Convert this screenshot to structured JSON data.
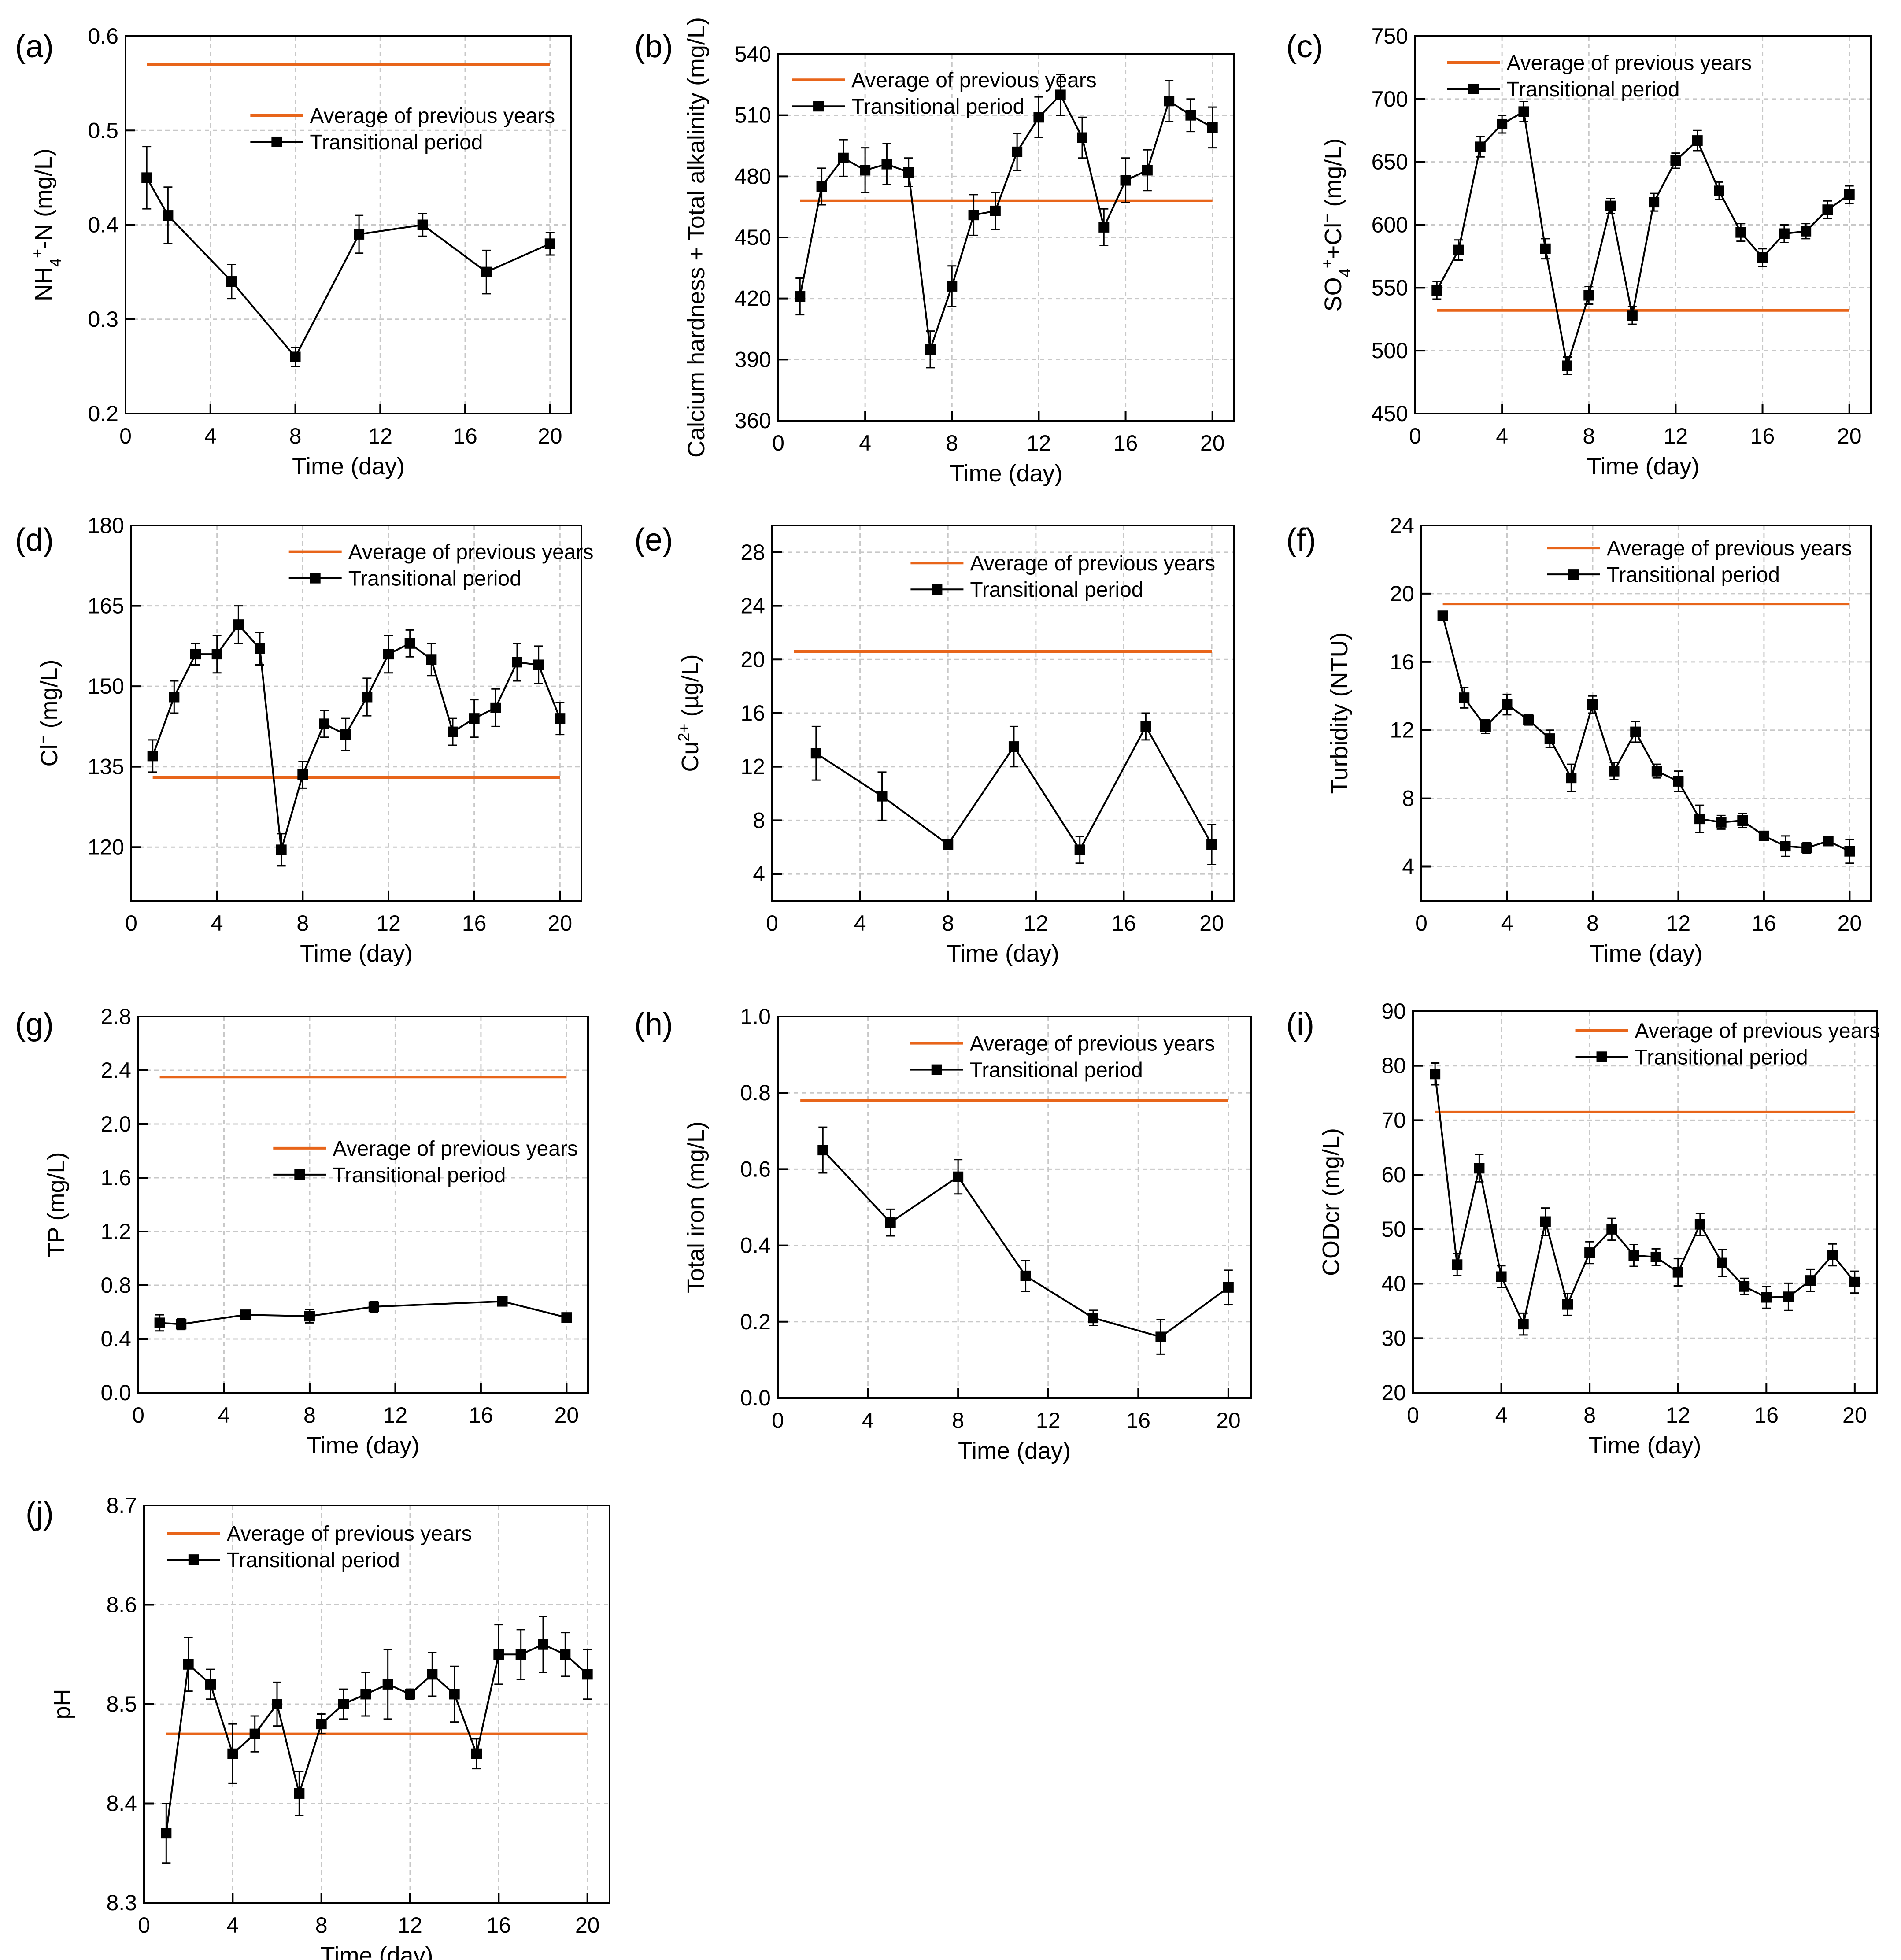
{
  "legend": {
    "average_label": "Average of previous years",
    "transitional_label": "Transitional period"
  },
  "colors": {
    "average": "#E8651A",
    "transitional": "#000000",
    "grid": "#c8c8c8"
  },
  "chart_data": [
    {
      "type": "line",
      "panel_label": "(a)",
      "xlabel": "Time (day)",
      "ylabel_parts": [
        [
          "NH",
          ""
        ],
        [
          "4",
          "sub"
        ],
        [
          "+",
          "sup"
        ],
        [
          "-N (mg/L)",
          ""
        ]
      ],
      "xlim": [
        0,
        21
      ],
      "xticks": [
        0,
        4,
        8,
        12,
        16,
        20
      ],
      "ylim": [
        0.2,
        0.6
      ],
      "yticks": [
        0.2,
        0.3,
        0.4,
        0.5,
        0.6
      ],
      "ydecimals": 1,
      "average": {
        "value": 0.57,
        "x_range": [
          1,
          20
        ]
      },
      "legend_position": "upper-right",
      "legend_anchor": [
        0.28,
        0.79
      ],
      "series": [
        {
          "name": "Transitional period",
          "x": [
            1,
            2,
            5,
            8,
            11,
            14,
            17,
            20
          ],
          "y": [
            0.45,
            0.41,
            0.34,
            0.26,
            0.39,
            0.4,
            0.35,
            0.38
          ],
          "err": [
            0.033,
            0.03,
            0.018,
            0.01,
            0.02,
            0.012,
            0.023,
            0.012
          ]
        }
      ]
    },
    {
      "type": "line",
      "panel_label": "(b)",
      "xlabel": "Time (day)",
      "ylabel_parts": [
        [
          "Calcium hardness + Total alkalinity (mg/L)",
          ""
        ]
      ],
      "xlim": [
        0,
        21
      ],
      "xticks": [
        0,
        4,
        8,
        12,
        16,
        20
      ],
      "ylim": [
        360,
        540
      ],
      "yticks": [
        360,
        390,
        420,
        450,
        480,
        510,
        540
      ],
      "ydecimals": 0,
      "average": {
        "value": 468,
        "x_range": [
          1,
          20
        ]
      },
      "legend_position": "top-left",
      "legend_anchor": [
        0.03,
        0.93
      ],
      "series": [
        {
          "name": "Transitional period",
          "x": [
            1,
            2,
            3,
            4,
            5,
            6,
            7,
            8,
            9,
            10,
            11,
            12,
            13,
            14,
            15,
            16,
            17,
            18,
            19,
            20
          ],
          "y": [
            421,
            475,
            489,
            483,
            486,
            482,
            395,
            426,
            461,
            463,
            492,
            509,
            520,
            499,
            455,
            478,
            483,
            517,
            510,
            504
          ],
          "err": [
            9,
            9,
            9,
            11,
            10,
            7,
            9,
            10,
            10,
            9,
            9,
            10,
            10,
            10,
            9,
            11,
            10,
            10,
            8,
            10
          ]
        }
      ]
    },
    {
      "type": "line",
      "panel_label": "(c)",
      "xlabel": "Time (day)",
      "ylabel_parts": [
        [
          "SO",
          ""
        ],
        [
          "4",
          "sub"
        ],
        [
          "+",
          "sup"
        ],
        [
          "+Cl",
          ""
        ],
        [
          "−",
          "sup"
        ],
        [
          " (mg/L)",
          ""
        ]
      ],
      "xlim": [
        0,
        21
      ],
      "xticks": [
        0,
        4,
        8,
        12,
        16,
        20
      ],
      "ylim": [
        450,
        750
      ],
      "yticks": [
        450,
        500,
        550,
        600,
        650,
        700,
        750
      ],
      "ydecimals": 0,
      "average": {
        "value": 532,
        "x_range": [
          1,
          20
        ]
      },
      "legend_position": "top-left",
      "legend_anchor": [
        0.07,
        0.93
      ],
      "series": [
        {
          "name": "Transitional period",
          "x": [
            1,
            2,
            3,
            4,
            5,
            6,
            7,
            8,
            9,
            10,
            11,
            12,
            13,
            14,
            15,
            16,
            17,
            18,
            19,
            20
          ],
          "y": [
            548,
            580,
            662,
            680,
            690,
            581,
            488,
            544,
            615,
            528,
            618,
            651,
            667,
            627,
            594,
            574,
            593,
            595,
            612,
            624
          ],
          "err": [
            7,
            8,
            8,
            7,
            8,
            8,
            7,
            7,
            6,
            7,
            7,
            6,
            8,
            7,
            7,
            7,
            7,
            6,
            7,
            7
          ]
        }
      ]
    },
    {
      "type": "line",
      "panel_label": "(d)",
      "xlabel": "Time (day)",
      "ylabel_parts": [
        [
          "Cl",
          ""
        ],
        [
          "−",
          "sup"
        ],
        [
          "  (mg/L)",
          ""
        ]
      ],
      "xlim": [
        0,
        21
      ],
      "xticks": [
        0,
        4,
        8,
        12,
        16,
        20
      ],
      "ylim": [
        110,
        180
      ],
      "yticks": [
        120,
        135,
        150,
        165,
        180
      ],
      "ydecimals": 0,
      "average": {
        "value": 133,
        "x_range": [
          1,
          20
        ]
      },
      "legend_position": "top-right",
      "legend_anchor": [
        0.35,
        0.93
      ],
      "series": [
        {
          "name": "Transitional period",
          "x": [
            1,
            2,
            3,
            4,
            5,
            6,
            7,
            8,
            9,
            10,
            11,
            12,
            13,
            14,
            15,
            16,
            17,
            18,
            19,
            20
          ],
          "y": [
            137,
            148,
            156,
            156,
            161.5,
            157,
            119.5,
            133.5,
            143,
            141,
            148,
            156,
            158,
            155,
            141.5,
            144,
            146,
            154.5,
            154,
            144
          ],
          "err": [
            3,
            3,
            2,
            3.5,
            3.5,
            3,
            3,
            2.5,
            2.5,
            3,
            3.5,
            3.5,
            2.5,
            3,
            2.5,
            3.5,
            3.5,
            3.5,
            3.5,
            3
          ]
        }
      ]
    },
    {
      "type": "line",
      "panel_label": "(e)",
      "xlabel": "Time (day)",
      "ylabel_parts": [
        [
          "Cu",
          ""
        ],
        [
          "2+",
          "sup"
        ],
        [
          " (µg/L)",
          ""
        ]
      ],
      "xlim": [
        0,
        21
      ],
      "xticks": [
        0,
        4,
        8,
        12,
        16,
        20
      ],
      "ylim": [
        2,
        30
      ],
      "yticks": [
        4,
        8,
        12,
        16,
        20,
        24,
        28
      ],
      "ydecimals": 0,
      "average": {
        "value": 20.6,
        "x_range": [
          1,
          20
        ]
      },
      "legend_position": "top-right",
      "legend_anchor": [
        0.3,
        0.9
      ],
      "series": [
        {
          "name": "Transitional period",
          "x": [
            2,
            5,
            8,
            11,
            14,
            17,
            20
          ],
          "y": [
            13,
            9.8,
            6.2,
            13.5,
            5.8,
            15,
            6.2
          ],
          "err": [
            2,
            1.8,
            0.2,
            1.5,
            1,
            1,
            1.5
          ]
        }
      ]
    },
    {
      "type": "line",
      "panel_label": "(f)",
      "xlabel": "Time (day)",
      "ylabel_parts": [
        [
          "Turbidity (NTU)",
          ""
        ]
      ],
      "xlim": [
        0,
        21
      ],
      "xticks": [
        0,
        4,
        8,
        12,
        16,
        20
      ],
      "ylim": [
        2,
        24
      ],
      "yticks": [
        4,
        8,
        12,
        16,
        20,
        24
      ],
      "ydecimals": 0,
      "average": {
        "value": 19.4,
        "x_range": [
          1,
          20
        ]
      },
      "legend_position": "top-right",
      "legend_anchor": [
        0.28,
        0.94
      ],
      "series": [
        {
          "name": "Transitional period",
          "x": [
            1,
            2,
            3,
            4,
            5,
            6,
            7,
            8,
            9,
            10,
            11,
            12,
            13,
            14,
            15,
            16,
            17,
            18,
            19,
            20
          ],
          "y": [
            18.7,
            13.9,
            12.2,
            13.5,
            12.6,
            11.5,
            9.2,
            13.5,
            9.6,
            11.9,
            9.6,
            9,
            6.8,
            6.6,
            6.7,
            5.8,
            5.2,
            5.1,
            5.5,
            4.9
          ],
          "err": [
            0.2,
            0.6,
            0.4,
            0.6,
            0.3,
            0.5,
            0.8,
            0.5,
            0.5,
            0.6,
            0.4,
            0.6,
            0.8,
            0.4,
            0.4,
            0.2,
            0.6,
            0.3,
            0.2,
            0.7
          ]
        }
      ]
    },
    {
      "type": "line",
      "panel_label": "(g)",
      "xlabel": "Time (day)",
      "ylabel_parts": [
        [
          "TP (mg/L)",
          ""
        ]
      ],
      "xlim": [
        0,
        21
      ],
      "xticks": [
        0,
        4,
        8,
        12,
        16,
        20
      ],
      "ylim": [
        0,
        2.8
      ],
      "yticks": [
        0,
        0.4,
        0.8,
        1.2,
        1.6,
        2.0,
        2.4,
        2.8
      ],
      "ydecimals": 1,
      "average": {
        "value": 2.35,
        "x_range": [
          1,
          20
        ]
      },
      "legend_position": "center-right",
      "legend_anchor": [
        0.3,
        0.65
      ],
      "series": [
        {
          "name": "Transitional period",
          "x": [
            1,
            2,
            5,
            8,
            11,
            17,
            20
          ],
          "y": [
            0.52,
            0.51,
            0.58,
            0.57,
            0.64,
            0.68,
            0.56
          ],
          "err": [
            0.06,
            0.04,
            0.02,
            0.05,
            0.04,
            0.02,
            0.02
          ]
        }
      ]
    },
    {
      "type": "line",
      "panel_label": "(h)",
      "xlabel": "Time (day)",
      "ylabel_parts": [
        [
          "Total iron (mg/L)",
          ""
        ]
      ],
      "xlim": [
        0,
        21
      ],
      "xticks": [
        0,
        4,
        8,
        12,
        16,
        20
      ],
      "ylim": [
        0,
        1.0
      ],
      "yticks": [
        0,
        0.2,
        0.4,
        0.6,
        0.8,
        1.0
      ],
      "ydecimals": 1,
      "average": {
        "value": 0.78,
        "x_range": [
          1,
          20
        ]
      },
      "legend_position": "top-right",
      "legend_anchor": [
        0.28,
        0.93
      ],
      "series": [
        {
          "name": "Transitional period",
          "x": [
            2,
            5,
            8,
            11,
            14,
            17,
            20
          ],
          "y": [
            0.65,
            0.46,
            0.58,
            0.32,
            0.21,
            0.16,
            0.29
          ],
          "err": [
            0.06,
            0.035,
            0.045,
            0.04,
            0.02,
            0.045,
            0.045
          ]
        }
      ]
    },
    {
      "type": "line",
      "panel_label": "(i)",
      "xlabel": "Time (day)",
      "ylabel_parts": [
        [
          "CODcr (mg/L)",
          ""
        ]
      ],
      "xlim": [
        0,
        21
      ],
      "xticks": [
        0,
        4,
        8,
        12,
        16,
        20
      ],
      "ylim": [
        20,
        90
      ],
      "yticks": [
        20,
        30,
        40,
        50,
        60,
        70,
        80,
        90
      ],
      "ydecimals": 0,
      "average": {
        "value": 71.5,
        "x_range": [
          1,
          20
        ]
      },
      "legend_position": "top-right",
      "legend_anchor": [
        0.35,
        0.95
      ],
      "series": [
        {
          "name": "Transitional period",
          "x": [
            1,
            2,
            3,
            4,
            5,
            6,
            7,
            8,
            9,
            10,
            11,
            12,
            13,
            14,
            15,
            16,
            17,
            18,
            19,
            20
          ],
          "y": [
            78.5,
            43.5,
            61.2,
            41.3,
            32.6,
            51.4,
            36.2,
            45.7,
            50,
            45.2,
            44.9,
            42.1,
            50.9,
            43.8,
            39.5,
            37.5,
            37.6,
            40.6,
            45.3,
            40.3
          ],
          "err": [
            2,
            2,
            2.5,
            2,
            2,
            2.5,
            2,
            2,
            2,
            2,
            1.5,
            2.5,
            2,
            2.5,
            1.5,
            2,
            2.5,
            2,
            2,
            2
          ]
        }
      ]
    },
    {
      "type": "line",
      "panel_label": "(j)",
      "xlabel": "Time (day)",
      "ylabel_parts": [
        [
          "pH",
          ""
        ]
      ],
      "xlim": [
        0,
        21
      ],
      "xticks": [
        0,
        4,
        8,
        12,
        16,
        20
      ],
      "ylim": [
        8.3,
        8.7
      ],
      "yticks": [
        8.3,
        8.4,
        8.5,
        8.6,
        8.7
      ],
      "ydecimals": 1,
      "average": {
        "value": 8.47,
        "x_range": [
          1,
          20
        ]
      },
      "legend_position": "top-left",
      "legend_anchor": [
        0.05,
        0.93
      ],
      "series": [
        {
          "name": "Transitional period",
          "x": [
            1,
            2,
            3,
            4,
            5,
            6,
            7,
            8,
            9,
            10,
            11,
            12,
            13,
            14,
            15,
            16,
            17,
            18,
            19,
            20
          ],
          "y": [
            8.37,
            8.54,
            8.52,
            8.45,
            8.47,
            8.5,
            8.41,
            8.48,
            8.5,
            8.51,
            8.52,
            8.51,
            8.53,
            8.51,
            8.45,
            8.55,
            8.55,
            8.56,
            8.55,
            8.53
          ],
          "err": [
            0.03,
            0.027,
            0.015,
            0.03,
            0.018,
            0.022,
            0.022,
            0.01,
            0.015,
            0.022,
            0.035,
            0.005,
            0.022,
            0.028,
            0.015,
            0.03,
            0.025,
            0.028,
            0.022,
            0.025
          ]
        }
      ]
    }
  ]
}
